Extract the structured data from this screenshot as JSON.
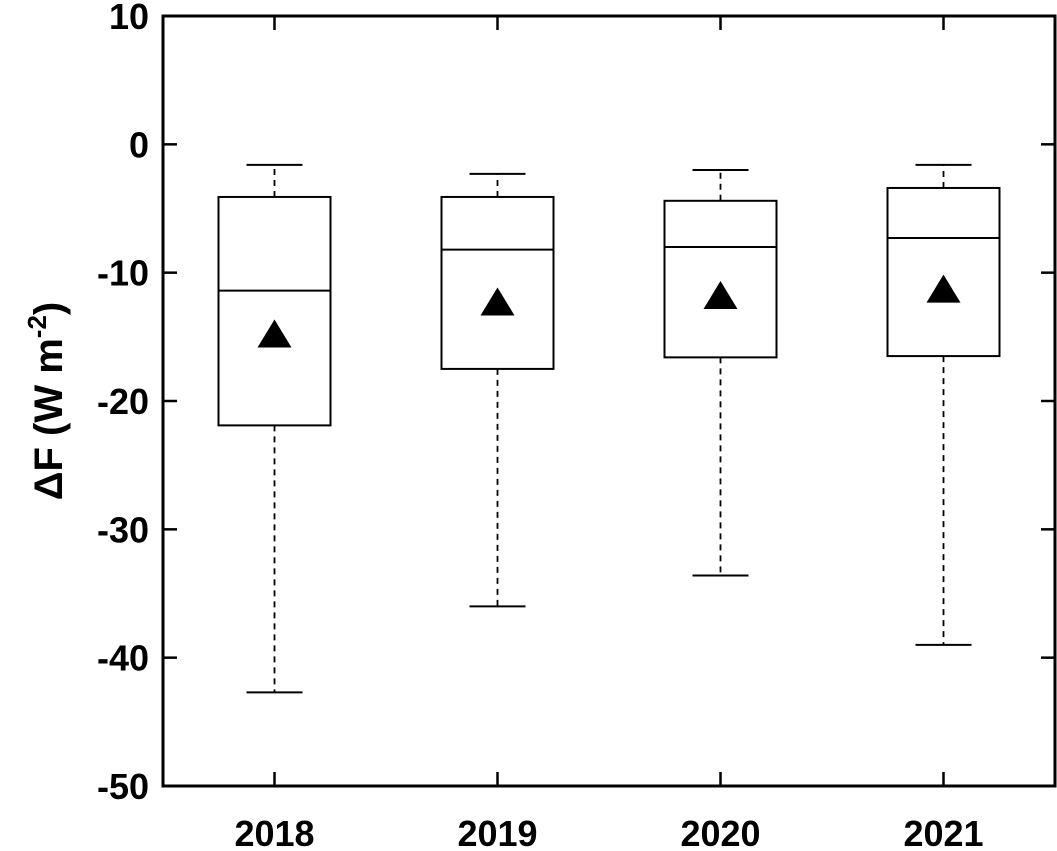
{
  "chart_data": {
    "type": "box",
    "title": "",
    "xlabel": "",
    "ylabel": {
      "prefix": "ΔF (W m",
      "superscript": "-2",
      "suffix": ")"
    },
    "ylim": [
      -50,
      10
    ],
    "yticks": [
      "10",
      "0",
      "-10",
      "-20",
      "-30",
      "-40",
      "-50"
    ],
    "ytick_values": [
      10,
      0,
      -10,
      -20,
      -30,
      -40,
      -50
    ],
    "grid": false,
    "categories": [
      "2018",
      "2019",
      "2020",
      "2021"
    ],
    "boxes": [
      {
        "category": "2018",
        "whisker_high": -1.6,
        "q3": -4.1,
        "median": -11.4,
        "q1": -21.9,
        "whisker_low": -42.7,
        "mean": -14.9
      },
      {
        "category": "2019",
        "whisker_high": -2.3,
        "q3": -4.1,
        "median": -8.2,
        "q1": -17.5,
        "whisker_low": -36.0,
        "mean": -12.4
      },
      {
        "category": "2020",
        "whisker_high": -2.0,
        "q3": -4.4,
        "median": -8.0,
        "q1": -16.6,
        "whisker_low": -33.6,
        "mean": -11.9
      },
      {
        "category": "2021",
        "whisker_high": -1.6,
        "q3": -3.4,
        "median": -7.3,
        "q1": -16.5,
        "whisker_low": -39.0,
        "mean": -11.4
      }
    ],
    "mean_marker": "filled-triangle",
    "colors": {
      "box": "#000000",
      "mean": "#000000",
      "background": "#ffffff"
    }
  }
}
